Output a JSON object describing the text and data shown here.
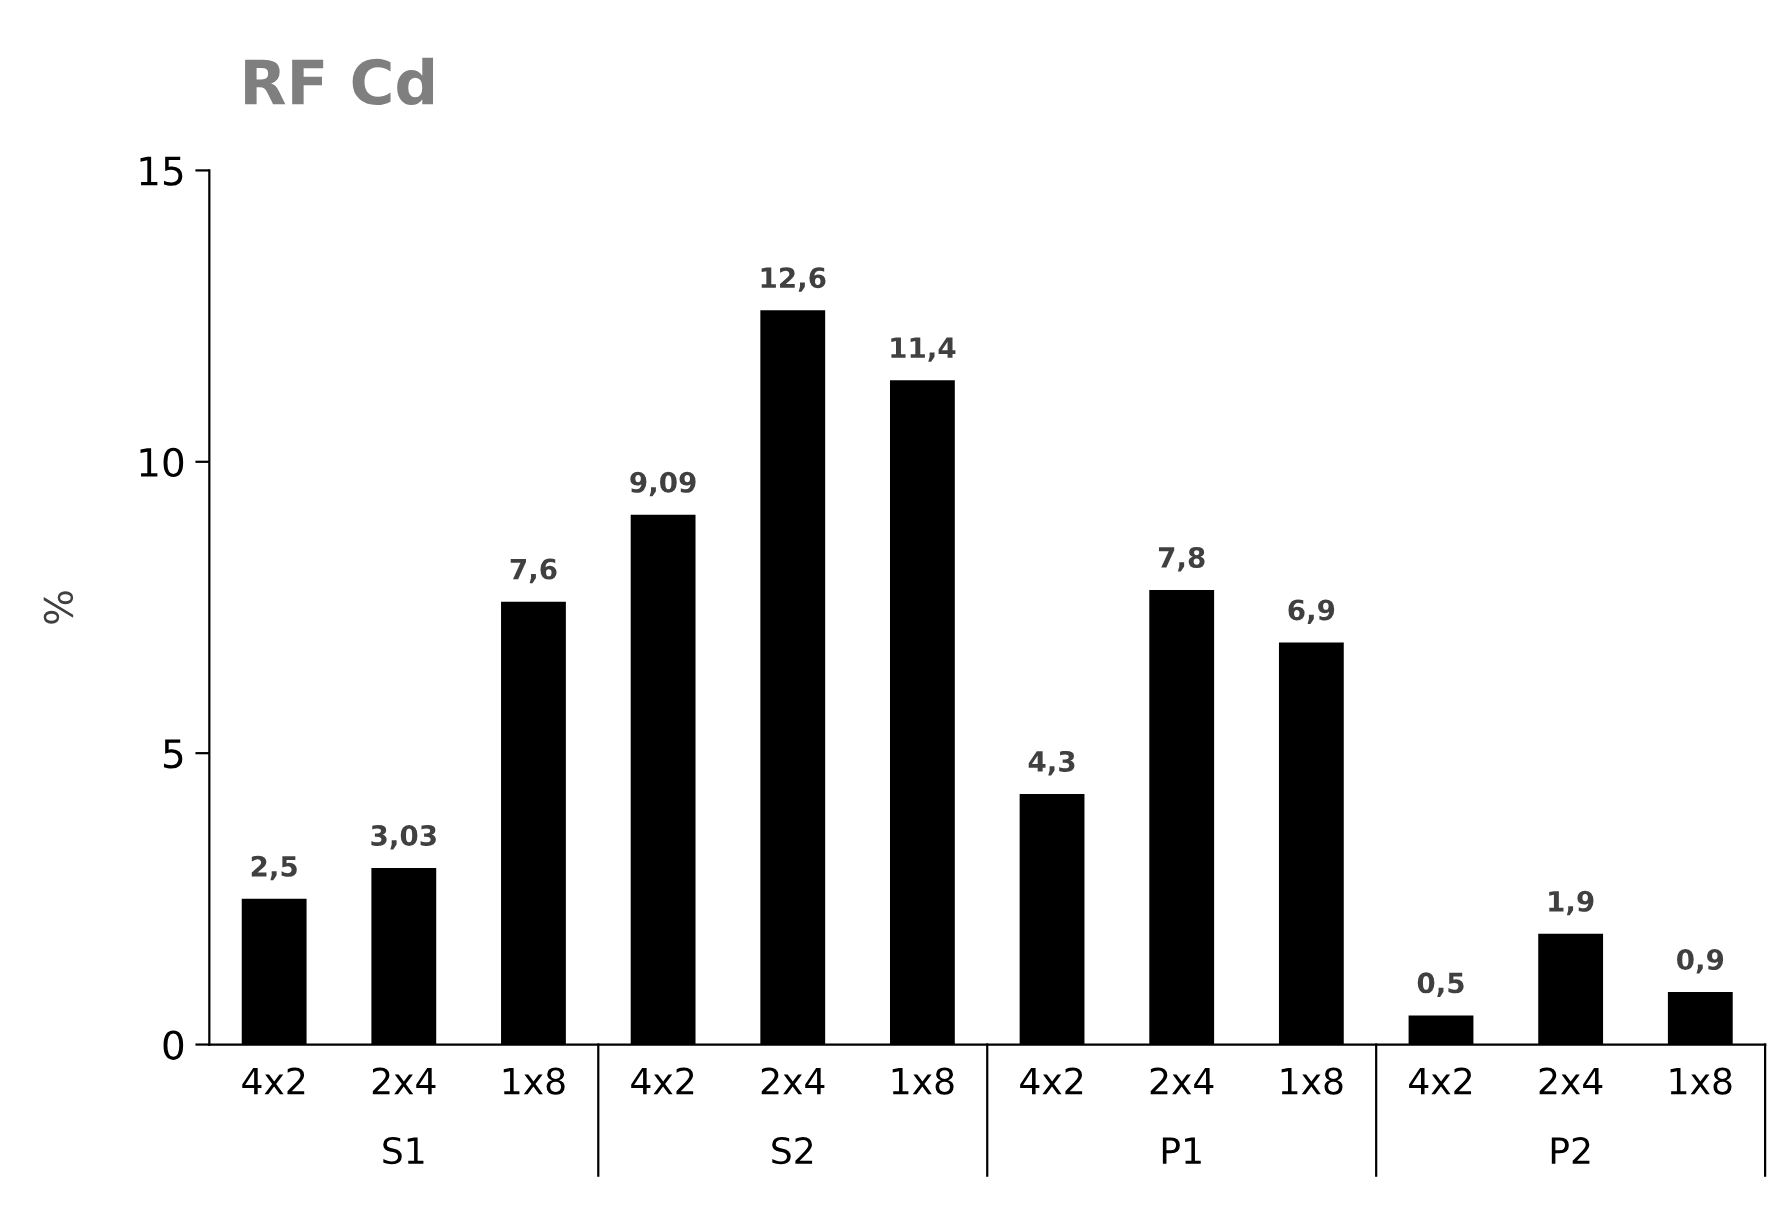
{
  "chart_data": {
    "type": "bar",
    "title": "RF Cd",
    "ylabel": "%",
    "categories": [
      "4x2",
      "2x4",
      "1x8",
      "4x2",
      "2x4",
      "1x8",
      "4x2",
      "2x4",
      "1x8",
      "4x2",
      "2x4",
      "1x8"
    ],
    "values": [
      2.5,
      3.03,
      7.6,
      9.09,
      12.6,
      11.4,
      4.3,
      7.8,
      6.9,
      0.5,
      1.9,
      0.9
    ],
    "value_labels": [
      "2,5",
      "3,03",
      "7,6",
      "9,09",
      "12,6",
      "11,4",
      "4,3",
      "7,8",
      "6,9",
      "0,5",
      "1,9",
      "0,9"
    ],
    "color": "#000000",
    "annotations": [
      "S1",
      "S2",
      "P1",
      "P2"
    ],
    "ylim": [
      0,
      15
    ],
    "yticks": [
      0,
      5,
      10,
      15
    ],
    "grid": false,
    "legend": false
  }
}
